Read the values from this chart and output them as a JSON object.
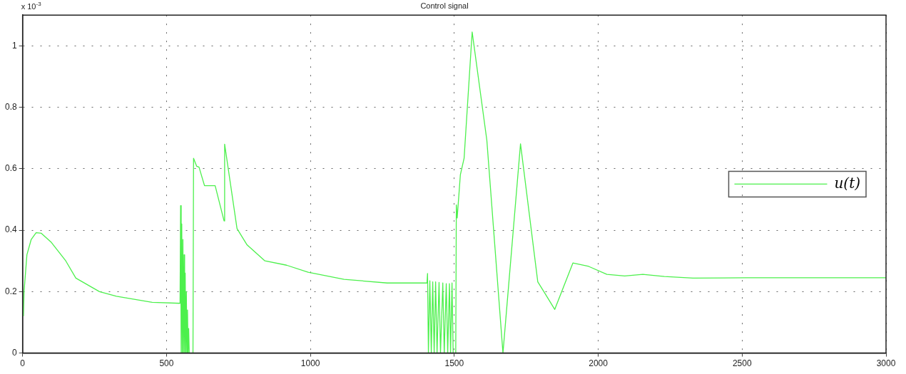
{
  "chart_data": {
    "type": "line",
    "title": "Control signal",
    "annotations": [
      "x 10$^{-3}$"
    ],
    "xlim": [
      0,
      3000
    ],
    "xticks": [
      0,
      500,
      1000,
      1500,
      2000,
      2500,
      3000
    ],
    "ylim": [
      0,
      1.1
    ],
    "yticks": [
      0,
      0.2,
      0.4,
      0.6,
      0.8,
      1
    ],
    "grid": true,
    "legend": "right",
    "marker": "none",
    "line_style": "solid",
    "series": [
      {
        "name": "u(t)",
        "color": "#4cf04c",
        "x": [
          3,
          5,
          15,
          30,
          47,
          65,
          100,
          150,
          185,
          267,
          326,
          450,
          547,
          549,
          551,
          553,
          555,
          557,
          559,
          561,
          563,
          565,
          567,
          569,
          571,
          573,
          575,
          577,
          579,
          584,
          592,
          594,
          605,
          613,
          632,
          669,
          700,
          702,
          745,
          780,
          842,
          917,
          992,
          1117,
          1267,
          1392,
          1405,
          1407,
          1410,
          1415,
          1420,
          1425,
          1430,
          1435,
          1440,
          1447,
          1452,
          1460,
          1465,
          1472,
          1477,
          1483,
          1487,
          1492,
          1496,
          1505,
          1507,
          1510,
          1521,
          1534,
          1562,
          1613,
          1669,
          1730,
          1790,
          1849,
          1912,
          1967,
          2030,
          2092,
          2155,
          2230,
          2330,
          2517,
          3000
        ],
        "values": [
          0.12,
          0.2,
          0.32,
          0.37,
          0.392,
          0.39,
          0.36,
          0.3,
          0.244,
          0.2,
          0.185,
          0.165,
          0.162,
          0.48,
          0,
          0.42,
          0,
          0.37,
          0,
          0.32,
          0,
          0.26,
          0,
          0.2,
          0,
          0.14,
          0,
          0.08,
          0,
          0,
          0,
          0.634,
          0.608,
          0.605,
          0.545,
          0.545,
          0.43,
          0.68,
          0.405,
          0.352,
          0.3,
          0.286,
          0.263,
          0.24,
          0.228,
          0.228,
          0.228,
          0.259,
          0,
          0.235,
          0,
          0.232,
          0,
          0.232,
          0,
          0.23,
          0,
          0.228,
          0,
          0.226,
          0,
          0.226,
          0,
          0.228,
          0,
          0,
          0.482,
          0.44,
          0.58,
          0.634,
          1.045,
          0.693,
          0,
          0.681,
          0.232,
          0.142,
          0.293,
          0.282,
          0.256,
          0.251,
          0.256,
          0.249,
          0.244,
          0.245,
          0.245
        ]
      }
    ]
  }
}
